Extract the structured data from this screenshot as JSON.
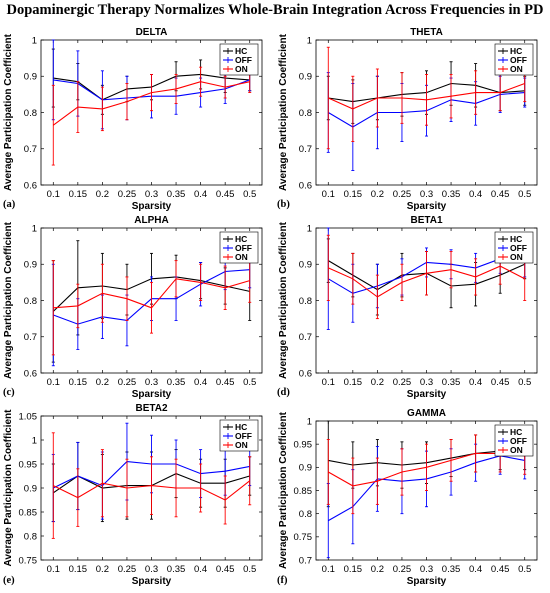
{
  "figure": {
    "title": "Dopaminergic Therapy Normalizes Whole-Brain Integration Across Frequencies in PD"
  },
  "colors": {
    "HC": "#000000",
    "OFF": "#0000ff",
    "ON": "#ff0000"
  },
  "chart_data": [
    {
      "type": "line",
      "letter": "(a)",
      "title": "DELTA",
      "xlabel": "Sparsity",
      "ylabel": "Average Participation Coefficient",
      "x": [
        0.1,
        0.15,
        0.2,
        0.25,
        0.3,
        0.35,
        0.4,
        0.45,
        0.5
      ],
      "ylim": [
        0.6,
        1
      ],
      "yticks": [
        0.6,
        0.7,
        0.8,
        0.9,
        1
      ],
      "ytick_labels": [
        "0.6",
        "0.7",
        "0.8",
        "0.9",
        "1"
      ],
      "legend": "top-right",
      "grid": false,
      "series": [
        {
          "name": "HC",
          "values": [
            0.895,
            0.885,
            0.835,
            0.865,
            0.87,
            0.9,
            0.905,
            0.895,
            0.89
          ],
          "errors": [
            0.08,
            0.05,
            0.04,
            0.035,
            0.035,
            0.04,
            0.04,
            0.04,
            0.03
          ]
        },
        {
          "name": "OFF",
          "values": [
            0.89,
            0.88,
            0.835,
            0.84,
            0.845,
            0.845,
            0.855,
            0.865,
            0.89
          ],
          "errors": [
            0.11,
            0.09,
            0.08,
            0.06,
            0.06,
            0.05,
            0.04,
            0.04,
            0.03
          ]
        },
        {
          "name": "ON",
          "values": [
            0.765,
            0.815,
            0.81,
            0.83,
            0.855,
            0.865,
            0.885,
            0.87,
            0.885
          ],
          "errors": [
            0.11,
            0.07,
            0.06,
            0.05,
            0.05,
            0.04,
            0.04,
            0.03,
            0.03
          ]
        }
      ]
    },
    {
      "type": "line",
      "letter": "(b)",
      "title": "THETA",
      "xlabel": "Sparsity",
      "ylabel": "Average Participation Coefficient",
      "x": [
        0.1,
        0.15,
        0.2,
        0.25,
        0.3,
        0.35,
        0.4,
        0.45,
        0.5
      ],
      "ylim": [
        0.6,
        1
      ],
      "yticks": [
        0.6,
        0.7,
        0.8,
        0.9,
        1
      ],
      "ytick_labels": [
        "0.6",
        "0.7",
        "0.8",
        "0.9",
        "1"
      ],
      "legend": "top-right",
      "grid": false,
      "series": [
        {
          "name": "HC",
          "values": [
            0.84,
            0.83,
            0.84,
            0.85,
            0.855,
            0.88,
            0.875,
            0.855,
            0.86
          ],
          "errors": [
            0.06,
            0.06,
            0.06,
            0.06,
            0.06,
            0.06,
            0.06,
            0.05,
            0.04
          ]
        },
        {
          "name": "OFF",
          "values": [
            0.8,
            0.76,
            0.8,
            0.8,
            0.805,
            0.835,
            0.825,
            0.85,
            0.855
          ],
          "errors": [
            0.11,
            0.12,
            0.1,
            0.08,
            0.07,
            0.06,
            0.06,
            0.05,
            0.04
          ]
        },
        {
          "name": "ON",
          "values": [
            0.84,
            0.81,
            0.84,
            0.84,
            0.835,
            0.845,
            0.855,
            0.855,
            0.88
          ],
          "errors": [
            0.14,
            0.09,
            0.08,
            0.07,
            0.07,
            0.06,
            0.06,
            0.05,
            0.05
          ]
        }
      ]
    },
    {
      "type": "line",
      "letter": "(c)",
      "title": "ALPHA",
      "xlabel": "Sparsity",
      "ylabel": "Average Participation Coefficient",
      "x": [
        0.1,
        0.15,
        0.2,
        0.25,
        0.3,
        0.35,
        0.4,
        0.45,
        0.5
      ],
      "ylim": [
        0.6,
        1
      ],
      "yticks": [
        0.6,
        0.7,
        0.8,
        0.9,
        1
      ],
      "ytick_labels": [
        "0.6",
        "0.7",
        "0.8",
        "0.9",
        "1"
      ],
      "legend": "top-right",
      "grid": false,
      "series": [
        {
          "name": "HC",
          "values": [
            0.77,
            0.835,
            0.84,
            0.83,
            0.86,
            0.865,
            0.855,
            0.84,
            0.825
          ],
          "errors": [
            0.14,
            0.13,
            0.09,
            0.07,
            0.07,
            0.06,
            0.05,
            0.05,
            0.08
          ]
        },
        {
          "name": "OFF",
          "values": [
            0.76,
            0.735,
            0.755,
            0.745,
            0.805,
            0.805,
            0.845,
            0.88,
            0.885
          ],
          "errors": [
            0.14,
            0.07,
            0.06,
            0.07,
            0.06,
            0.06,
            0.06,
            0.05,
            0.05
          ]
        },
        {
          "name": "ON",
          "values": [
            0.78,
            0.785,
            0.82,
            0.805,
            0.78,
            0.86,
            0.85,
            0.835,
            0.855
          ],
          "errors": [
            0.13,
            0.06,
            0.08,
            0.06,
            0.07,
            0.05,
            0.05,
            0.06,
            0.06
          ]
        }
      ]
    },
    {
      "type": "line",
      "letter": "(d)",
      "title": "BETA1",
      "xlabel": "Sparsity",
      "ylabel": "Average Participation Coefficient",
      "x": [
        0.1,
        0.15,
        0.2,
        0.25,
        0.3,
        0.35,
        0.4,
        0.45,
        0.5
      ],
      "ylim": [
        0.6,
        1
      ],
      "yticks": [
        0.6,
        0.7,
        0.8,
        0.9,
        1
      ],
      "ytick_labels": [
        "0.6",
        "0.7",
        "0.8",
        "0.9",
        "1"
      ],
      "legend": "top-right",
      "grid": false,
      "series": [
        {
          "name": "HC",
          "values": [
            0.91,
            0.87,
            0.83,
            0.87,
            0.875,
            0.84,
            0.845,
            0.87,
            0.9
          ],
          "errors": [
            0.06,
            0.06,
            0.07,
            0.06,
            0.06,
            0.06,
            0.06,
            0.05,
            0.04
          ]
        },
        {
          "name": "OFF",
          "values": [
            0.86,
            0.82,
            0.84,
            0.865,
            0.905,
            0.9,
            0.89,
            0.915,
            0.905
          ],
          "errors": [
            0.14,
            0.08,
            0.06,
            0.05,
            0.04,
            0.04,
            0.04,
            0.04,
            0.04
          ]
        },
        {
          "name": "ON",
          "values": [
            0.89,
            0.86,
            0.81,
            0.85,
            0.875,
            0.885,
            0.865,
            0.895,
            0.86
          ],
          "errors": [
            0.09,
            0.07,
            0.06,
            0.05,
            0.06,
            0.05,
            0.05,
            0.05,
            0.06
          ]
        }
      ]
    },
    {
      "type": "line",
      "letter": "(e)",
      "title": "BETA2",
      "xlabel": "Sparsity",
      "ylabel": "Average Participation Coefficient",
      "x": [
        0.1,
        0.15,
        0.2,
        0.25,
        0.3,
        0.35,
        0.4,
        0.45,
        0.5
      ],
      "ylim": [
        0.75,
        1.05
      ],
      "yticks": [
        0.75,
        0.8,
        0.85,
        0.9,
        0.95,
        1,
        1.05
      ],
      "ytick_labels": [
        "0.75",
        "0.8",
        "0.85",
        "0.9",
        "0.95",
        "1",
        "1.05"
      ],
      "legend": "top-right",
      "grid": false,
      "series": [
        {
          "name": "HC",
          "values": [
            0.89,
            0.925,
            0.9,
            0.905,
            0.905,
            0.93,
            0.91,
            0.91,
            0.925
          ],
          "errors": [
            0.06,
            0.07,
            0.07,
            0.07,
            0.07,
            0.05,
            0.05,
            0.05,
            0.04
          ]
        },
        {
          "name": "OFF",
          "values": [
            0.9,
            0.925,
            0.905,
            0.955,
            0.95,
            0.95,
            0.93,
            0.935,
            0.945
          ],
          "errors": [
            0.07,
            0.07,
            0.07,
            0.08,
            0.06,
            0.05,
            0.05,
            0.05,
            0.04
          ]
        },
        {
          "name": "ON",
          "values": [
            0.905,
            0.88,
            0.91,
            0.9,
            0.905,
            0.9,
            0.9,
            0.875,
            0.915
          ],
          "errors": [
            0.11,
            0.06,
            0.07,
            0.06,
            0.06,
            0.06,
            0.05,
            0.05,
            0.05
          ]
        }
      ]
    },
    {
      "type": "line",
      "letter": "(f)",
      "title": "GAMMA",
      "xlabel": "Sparsity",
      "ylabel": "Average Participation Coefficient",
      "x": [
        0.1,
        0.15,
        0.2,
        0.25,
        0.3,
        0.35,
        0.4,
        0.45,
        0.5
      ],
      "ylim": [
        0.7,
        1
      ],
      "yticks": [
        0.7,
        0.75,
        0.8,
        0.85,
        0.9,
        0.95,
        1
      ],
      "ytick_labels": [
        "0.7",
        "0.75",
        "0.8",
        "0.85",
        "0.9",
        "0.95",
        "1"
      ],
      "legend": "top-right",
      "grid": false,
      "series": [
        {
          "name": "HC",
          "values": [
            0.915,
            0.905,
            0.91,
            0.905,
            0.91,
            0.92,
            0.93,
            0.935,
            0.935
          ],
          "errors": [
            0.1,
            0.05,
            0.05,
            0.05,
            0.045,
            0.04,
            0.04,
            0.04,
            0.04
          ]
        },
        {
          "name": "OFF",
          "values": [
            0.785,
            0.815,
            0.875,
            0.87,
            0.875,
            0.89,
            0.91,
            0.925,
            0.915
          ],
          "errors": [
            0.08,
            0.08,
            0.07,
            0.07,
            0.06,
            0.05,
            0.04,
            0.04,
            0.04
          ]
        },
        {
          "name": "ON",
          "values": [
            0.89,
            0.86,
            0.87,
            0.89,
            0.9,
            0.915,
            0.93,
            0.93,
            0.925
          ],
          "errors": [
            0.07,
            0.06,
            0.05,
            0.05,
            0.05,
            0.045,
            0.04,
            0.04,
            0.04
          ]
        }
      ]
    }
  ]
}
